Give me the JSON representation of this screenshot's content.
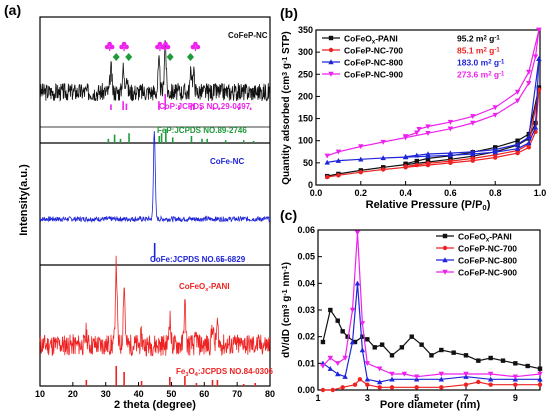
{
  "colors": {
    "black": "#111111",
    "red": "#ee2222",
    "blue": "#1f25d8",
    "magenta": "#ee22ee",
    "green": "#1e9b3a"
  },
  "chart_data": [
    {
      "panel": "(a)",
      "type": "line",
      "xlabel": "2 theta (degree)",
      "ylabel": "Intensity(a.u.)",
      "xlim": [
        10,
        80
      ],
      "xticks": [
        "10",
        "20",
        "30",
        "40",
        "50",
        "60",
        "70",
        "80"
      ],
      "series": [
        {
          "name": "CoFeP-NC",
          "color": "black",
          "peaks": [
            {
              "x": 31.6,
              "h": 0.45
            },
            {
              "x": 35.3,
              "h": 0.45
            },
            {
              "x": 36.3,
              "h": 0.35
            },
            {
              "x": 46.2,
              "h": 0.55
            },
            {
              "x": 48.1,
              "h": 1.0
            },
            {
              "x": 56.0,
              "h": 0.4
            },
            {
              "x": 56.8,
              "h": 0.35
            }
          ],
          "markers": [
            {
              "x": 31.2,
              "shape": "club",
              "color": "magenta"
            },
            {
              "x": 33.2,
              "shape": "diamond",
              "color": "green"
            },
            {
              "x": 35.6,
              "shape": "club",
              "color": "magenta"
            },
            {
              "x": 37.0,
              "shape": "diamond",
              "color": "green"
            },
            {
              "x": 46.5,
              "shape": "club",
              "color": "magenta"
            },
            {
              "x": 48.2,
              "shape": "club",
              "color": "magenta"
            },
            {
              "x": 49.6,
              "shape": "diamond",
              "color": "green"
            },
            {
              "x": 55.8,
              "shape": "diamond",
              "color": "green"
            },
            {
              "x": 57.3,
              "shape": "club",
              "color": "magenta"
            }
          ]
        },
        {
          "name": "CoFe-NC",
          "color": "blue",
          "peaks": [
            {
              "x": 44.8,
              "h": 1.0
            }
          ]
        },
        {
          "name": "CoFeOx-PANI",
          "color": "red",
          "peaks": [
            {
              "x": 24.1,
              "h": 0.15
            },
            {
              "x": 33.2,
              "h": 1.0
            },
            {
              "x": 35.6,
              "h": 0.75
            },
            {
              "x": 40.9,
              "h": 0.1
            },
            {
              "x": 49.5,
              "h": 0.35
            },
            {
              "x": 54.1,
              "h": 0.5
            },
            {
              "x": 57.6,
              "h": 0.1
            },
            {
              "x": 62.5,
              "h": 0.25
            },
            {
              "x": 64.0,
              "h": 0.25
            },
            {
              "x": 72.0,
              "h": 0.05
            }
          ]
        }
      ],
      "references": [
        {
          "label": "CoP:JCPDS NO.29-0497",
          "color": "magenta",
          "lines": [
            {
              "x": 31.6,
              "h": 0.35
            },
            {
              "x": 35.3,
              "h": 0.55
            },
            {
              "x": 36.3,
              "h": 0.4
            },
            {
              "x": 46.2,
              "h": 0.55
            },
            {
              "x": 48.1,
              "h": 1.0
            },
            {
              "x": 52.3,
              "h": 0.3
            },
            {
              "x": 56.0,
              "h": 0.35
            },
            {
              "x": 56.8,
              "h": 0.4
            },
            {
              "x": 59.0,
              "h": 0.2
            },
            {
              "x": 62.8,
              "h": 0.2
            },
            {
              "x": 64.5,
              "h": 0.15
            },
            {
              "x": 70.5,
              "h": 0.15
            },
            {
              "x": 74.1,
              "h": 0.15
            }
          ]
        },
        {
          "label": "FeP:JCPDS NO.89-2746",
          "color": "green",
          "lines": [
            {
              "x": 30.8,
              "h": 0.3
            },
            {
              "x": 32.7,
              "h": 0.6
            },
            {
              "x": 34.5,
              "h": 0.3
            },
            {
              "x": 37.1,
              "h": 0.7
            },
            {
              "x": 46.3,
              "h": 0.5
            },
            {
              "x": 47.0,
              "h": 0.7
            },
            {
              "x": 48.3,
              "h": 1.0
            },
            {
              "x": 50.4,
              "h": 0.4
            },
            {
              "x": 56.1,
              "h": 0.5
            },
            {
              "x": 59.3,
              "h": 0.3
            },
            {
              "x": 60.9,
              "h": 0.3
            },
            {
              "x": 66.5,
              "h": 0.2
            },
            {
              "x": 72.0,
              "h": 0.2
            },
            {
              "x": 75.0,
              "h": 0.15
            }
          ]
        },
        {
          "label": "CoFe:JCPDS NO.65-6829",
          "color": "blue",
          "lines": [
            {
              "x": 44.9,
              "h": 1.0
            },
            {
              "x": 65.3,
              "h": 0.1
            }
          ]
        },
        {
          "label": "Fe3O4:JCPDS NO.84-0306",
          "color": "red",
          "lines": [
            {
              "x": 24.1,
              "h": 0.3
            },
            {
              "x": 33.2,
              "h": 1.0
            },
            {
              "x": 35.6,
              "h": 0.7
            },
            {
              "x": 40.9,
              "h": 0.25
            },
            {
              "x": 49.5,
              "h": 0.45
            },
            {
              "x": 54.1,
              "h": 0.5
            },
            {
              "x": 57.6,
              "h": 0.15
            },
            {
              "x": 62.5,
              "h": 0.3
            },
            {
              "x": 64.0,
              "h": 0.3
            },
            {
              "x": 72.0,
              "h": 0.1
            },
            {
              "x": 75.5,
              "h": 0.15
            }
          ]
        }
      ]
    },
    {
      "panel": "(b)",
      "type": "line",
      "xlabel": "Relative Pressure (P/P0)",
      "ylabel": "Quantity adsorbed (cm3 g-1 STP)",
      "xlim": [
        0.0,
        1.0
      ],
      "ylim": [
        0,
        350
      ],
      "xticks": [
        0.0,
        0.2,
        0.4,
        0.6,
        0.8,
        1.0
      ],
      "yticks": [
        0,
        50,
        100,
        150,
        200,
        250,
        300,
        350
      ],
      "legend_position": "top-left",
      "series": [
        {
          "name": "CoFeOx-PANI",
          "color": "black",
          "surface_area": "95.2",
          "adsorption": [
            [
              0.05,
              20
            ],
            [
              0.1,
              25
            ],
            [
              0.2,
              33
            ],
            [
              0.3,
              40
            ],
            [
              0.4,
              46
            ],
            [
              0.5,
              52
            ],
            [
              0.6,
              58
            ],
            [
              0.7,
              65
            ],
            [
              0.8,
              75
            ],
            [
              0.9,
              90
            ],
            [
              0.95,
              105
            ],
            [
              0.98,
              140
            ],
            [
              0.995,
              220
            ]
          ],
          "desorption": [
            [
              0.995,
              220
            ],
            [
              0.95,
              115
            ],
            [
              0.9,
              100
            ],
            [
              0.8,
              85
            ],
            [
              0.7,
              74
            ],
            [
              0.6,
              66
            ],
            [
              0.5,
              60
            ],
            [
              0.45,
              54
            ],
            [
              0.4,
              48
            ]
          ]
        },
        {
          "name": "CoFeP-NC-700",
          "color": "red",
          "surface_area": "85.1",
          "adsorption": [
            [
              0.05,
              18
            ],
            [
              0.1,
              22
            ],
            [
              0.2,
              29
            ],
            [
              0.3,
              35
            ],
            [
              0.4,
              40
            ],
            [
              0.5,
              45
            ],
            [
              0.6,
              50
            ],
            [
              0.7,
              55
            ],
            [
              0.8,
              62
            ],
            [
              0.9,
              72
            ],
            [
              0.95,
              85
            ],
            [
              0.98,
              120
            ],
            [
              0.995,
              215
            ]
          ],
          "desorption": [
            [
              0.995,
              215
            ],
            [
              0.95,
              92
            ],
            [
              0.9,
              78
            ],
            [
              0.8,
              68
            ],
            [
              0.7,
              60
            ],
            [
              0.6,
              54
            ],
            [
              0.5,
              49
            ],
            [
              0.45,
              45
            ],
            [
              0.4,
              42
            ]
          ]
        },
        {
          "name": "CoFeP-NC-800",
          "color": "blue",
          "surface_area": "183.0",
          "adsorption": [
            [
              0.05,
              51
            ],
            [
              0.1,
              55
            ],
            [
              0.2,
              58
            ],
            [
              0.3,
              61
            ],
            [
              0.4,
              63
            ],
            [
              0.5,
              65
            ],
            [
              0.6,
              67
            ],
            [
              0.7,
              70
            ],
            [
              0.8,
              74
            ],
            [
              0.9,
              82
            ],
            [
              0.95,
              95
            ],
            [
              0.98,
              130
            ],
            [
              0.995,
              285
            ]
          ],
          "desorption": [
            [
              0.995,
              285
            ],
            [
              0.95,
              108
            ],
            [
              0.9,
              92
            ],
            [
              0.8,
              80
            ],
            [
              0.7,
              75
            ],
            [
              0.6,
              72
            ],
            [
              0.5,
              70
            ],
            [
              0.45,
              67
            ],
            [
              0.4,
              64
            ]
          ]
        },
        {
          "name": "CoFeP-NC-900",
          "color": "magenta",
          "surface_area": "273.6",
          "adsorption": [
            [
              0.05,
              66
            ],
            [
              0.1,
              75
            ],
            [
              0.2,
              87
            ],
            [
              0.3,
              97
            ],
            [
              0.4,
              107
            ],
            [
              0.5,
              117
            ],
            [
              0.6,
              127
            ],
            [
              0.7,
              140
            ],
            [
              0.8,
              158
            ],
            [
              0.9,
              190
            ],
            [
              0.95,
              230
            ],
            [
              0.98,
              290
            ],
            [
              0.995,
              350
            ]
          ],
          "desorption": [
            [
              0.995,
              350
            ],
            [
              0.95,
              255
            ],
            [
              0.9,
              210
            ],
            [
              0.8,
              175
            ],
            [
              0.7,
              155
            ],
            [
              0.6,
              142
            ],
            [
              0.5,
              132
            ],
            [
              0.46,
              126
            ],
            [
              0.45,
              118
            ],
            [
              0.4,
              110
            ]
          ]
        }
      ],
      "surface_area_unit": "m2 g-1"
    },
    {
      "panel": "(c)",
      "type": "line",
      "xlabel": "Pore diameter (nm)",
      "ylabel": "dV/dD (cm3 g-1 nm-1)",
      "xlim": [
        1,
        10
      ],
      "ylim": [
        0,
        0.06
      ],
      "xticks": [
        1,
        3,
        5,
        7,
        9
      ],
      "yticks": [
        0.0,
        0.01,
        0.02,
        0.03,
        0.04,
        0.05,
        0.06
      ],
      "legend_position": "top-right",
      "series": [
        {
          "name": "CoFeOx-PANI",
          "color": "black",
          "points": [
            [
              1.2,
              0.018
            ],
            [
              1.5,
              0.03
            ],
            [
              1.8,
              0.026
            ],
            [
              2.0,
              0.022
            ],
            [
              2.2,
              0.02
            ],
            [
              2.5,
              0.018
            ],
            [
              2.8,
              0.02
            ],
            [
              3.0,
              0.019
            ],
            [
              3.3,
              0.016
            ],
            [
              3.6,
              0.017
            ],
            [
              4.0,
              0.013
            ],
            [
              4.4,
              0.016
            ],
            [
              4.8,
              0.02
            ],
            [
              5.2,
              0.017
            ],
            [
              5.6,
              0.013
            ],
            [
              6.0,
              0.015
            ],
            [
              6.5,
              0.014
            ],
            [
              7.0,
              0.013
            ],
            [
              7.5,
              0.011
            ],
            [
              8.0,
              0.012
            ],
            [
              8.5,
              0.011
            ],
            [
              9.0,
              0.01
            ],
            [
              9.5,
              0.009
            ],
            [
              10.0,
              0.008
            ]
          ]
        },
        {
          "name": "CoFeP-NC-700",
          "color": "red",
          "points": [
            [
              1.2,
              0.0
            ],
            [
              1.6,
              0.0
            ],
            [
              2.0,
              0.001
            ],
            [
              2.5,
              0.002
            ],
            [
              2.7,
              0.004
            ],
            [
              3.0,
              0.002
            ],
            [
              3.5,
              0.001
            ],
            [
              4.0,
              0.001
            ],
            [
              5.0,
              0.001
            ],
            [
              6.0,
              0.001
            ],
            [
              7.0,
              0.002
            ],
            [
              7.5,
              0.003
            ],
            [
              8.0,
              0.002
            ],
            [
              9.0,
              0.002
            ],
            [
              10.0,
              0.002
            ]
          ]
        },
        {
          "name": "CoFeP-NC-800",
          "color": "blue",
          "points": [
            [
              1.2,
              0.01
            ],
            [
              1.5,
              0.008
            ],
            [
              1.8,
              0.006
            ],
            [
              2.1,
              0.005
            ],
            [
              2.4,
              0.018
            ],
            [
              2.6,
              0.04
            ],
            [
              2.8,
              0.015
            ],
            [
              3.0,
              0.004
            ],
            [
              3.5,
              0.003
            ],
            [
              4.0,
              0.004
            ],
            [
              5.0,
              0.004
            ],
            [
              6.0,
              0.004
            ],
            [
              7.0,
              0.005
            ],
            [
              8.0,
              0.004
            ],
            [
              9.0,
              0.004
            ],
            [
              10.0,
              0.004
            ]
          ]
        },
        {
          "name": "CoFeP-NC-900",
          "color": "magenta",
          "points": [
            [
              1.2,
              0.009
            ],
            [
              1.5,
              0.012
            ],
            [
              1.8,
              0.01
            ],
            [
              2.1,
              0.012
            ],
            [
              2.4,
              0.03
            ],
            [
              2.6,
              0.059
            ],
            [
              2.8,
              0.025
            ],
            [
              3.0,
              0.01
            ],
            [
              3.5,
              0.008
            ],
            [
              4.0,
              0.006
            ],
            [
              4.5,
              0.006
            ],
            [
              5.0,
              0.005
            ],
            [
              6.0,
              0.006
            ],
            [
              7.0,
              0.006
            ],
            [
              8.0,
              0.006
            ],
            [
              9.0,
              0.005
            ],
            [
              10.0,
              0.006
            ]
          ]
        }
      ]
    }
  ]
}
